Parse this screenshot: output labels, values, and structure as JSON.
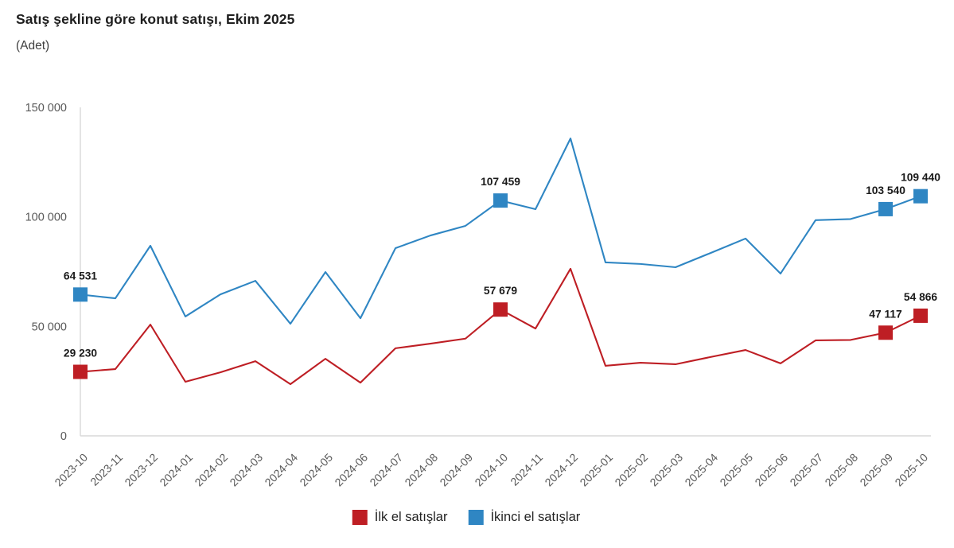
{
  "header": {
    "title": "Satış şekline göre konut satışı, Ekim 2025",
    "subtitle": "(Adet)"
  },
  "colors": {
    "first_hand": "#BE1E24",
    "second_hand": "#2F86C3",
    "axis_line": "#D9D9D9",
    "tick_text": "#595959",
    "data_label_text": "#1a1a1a",
    "title_text": "#1f1f1f",
    "background": "#FFFFFF"
  },
  "chart_data": {
    "type": "line",
    "title": "Satış şekline göre konut satışı, Ekim 2025",
    "unit_label": "(Adet)",
    "xlabel": "",
    "ylabel": "",
    "ylim": [
      0,
      150000
    ],
    "yticks": [
      0,
      50000,
      100000,
      150000
    ],
    "ytick_labels": [
      "0",
      "50 000",
      "100 000",
      "150 000"
    ],
    "grid": false,
    "legend_position": "bottom",
    "marker_shape": "square",
    "categories": [
      "2023-10",
      "2023-11",
      "2023-12",
      "2024-01",
      "2024-02",
      "2024-03",
      "2024-04",
      "2024-05",
      "2024-06",
      "2024-07",
      "2024-08",
      "2024-09",
      "2024-10",
      "2024-11",
      "2024-12",
      "2025-01",
      "2025-02",
      "2025-03",
      "2025-04",
      "2025-05",
      "2025-06",
      "2025-07",
      "2025-08",
      "2025-09",
      "2025-10"
    ],
    "series": [
      {
        "name": "İlk el satışlar",
        "key": "ilk-el-satislar",
        "color": "#BE1E24",
        "values": [
          29230,
          30500,
          50800,
          24700,
          29000,
          34100,
          23600,
          35200,
          24300,
          40000,
          42100,
          44400,
          57679,
          49000,
          76300,
          32000,
          33400,
          32700,
          36000,
          39200,
          33100,
          43600,
          43800,
          47117,
          54866
        ],
        "labeled_points": [
          {
            "index": 0,
            "label": "29 230"
          },
          {
            "index": 12,
            "label": "57 679"
          },
          {
            "index": 23,
            "label": "47 117"
          },
          {
            "index": 24,
            "label": "54 866"
          }
        ]
      },
      {
        "name": "İkinci el satışlar",
        "key": "ikinci-el-satislar",
        "color": "#2F86C3",
        "values": [
          64531,
          62800,
          86800,
          54500,
          64600,
          70800,
          51200,
          74800,
          53700,
          85700,
          91500,
          95900,
          107459,
          103500,
          135800,
          79200,
          78500,
          77000,
          83500,
          90100,
          74100,
          98500,
          99000,
          103540,
          109440
        ],
        "labeled_points": [
          {
            "index": 0,
            "label": "64 531"
          },
          {
            "index": 12,
            "label": "107 459"
          },
          {
            "index": 23,
            "label": "103 540"
          },
          {
            "index": 24,
            "label": "109 440"
          }
        ]
      }
    ]
  },
  "legend": {
    "items": [
      {
        "label": "İlk el satışlar",
        "color": "#BE1E24"
      },
      {
        "label": "İkinci el satışlar",
        "color": "#2F86C3"
      }
    ]
  }
}
